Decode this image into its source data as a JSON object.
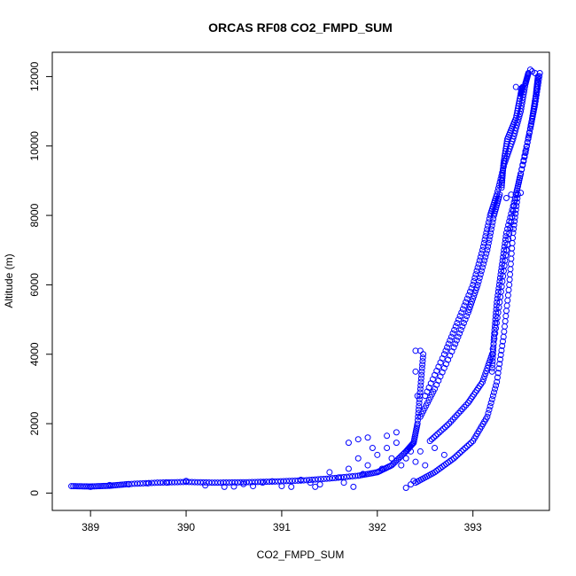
{
  "chart_data": {
    "type": "scatter",
    "title": "ORCAS RF08 CO2_FMPD_SUM",
    "xlabel": "CO2_FMPD_SUM",
    "ylabel": "Altitude (m)",
    "xlim": [
      388.6,
      393.8
    ],
    "ylim": [
      -500,
      12700
    ],
    "xticks": [
      389,
      390,
      391,
      392,
      393
    ],
    "yticks": [
      0,
      2000,
      4000,
      6000,
      8000,
      10000,
      12000
    ],
    "xtick_labels": [
      "389",
      "390",
      "391",
      "392",
      "393"
    ],
    "ytick_labels": [
      "0",
      "2000",
      "4000",
      "6000",
      "8000",
      "10000",
      "12000"
    ],
    "grid": false,
    "legend": "none",
    "marker": "open-circle",
    "color": "#0000ff",
    "series": [
      {
        "segments": [
          [
            [
              388.8,
              200
            ],
            [
              389.0,
              190
            ],
            [
              389.2,
              210
            ],
            [
              389.4,
              260
            ],
            [
              389.7,
              300
            ],
            [
              390.0,
              320
            ],
            [
              390.3,
              300
            ],
            [
              390.6,
              310
            ],
            [
              390.9,
              330
            ],
            [
              391.2,
              360
            ],
            [
              391.5,
              420
            ],
            [
              391.8,
              500
            ],
            [
              392.0,
              600
            ],
            [
              392.15,
              800
            ],
            [
              392.3,
              1200
            ],
            [
              392.38,
              1450
            ],
            [
              392.42,
              2000
            ],
            [
              392.45,
              3000
            ],
            [
              392.48,
              4000
            ]
          ],
          [
            [
              392.4,
              300
            ],
            [
              392.6,
              600
            ],
            [
              392.8,
              1000
            ],
            [
              393.0,
              1500
            ],
            [
              393.15,
              2200
            ],
            [
              393.25,
              3200
            ],
            [
              393.32,
              4500
            ],
            [
              393.38,
              6000
            ],
            [
              393.42,
              7500
            ],
            [
              393.47,
              8600
            ]
          ],
          [
            [
              392.45,
              2200
            ],
            [
              392.6,
              3000
            ],
            [
              392.8,
              4200
            ],
            [
              392.95,
              5200
            ],
            [
              393.05,
              6000
            ],
            [
              393.15,
              7000
            ],
            [
              393.22,
              8000
            ],
            [
              393.28,
              8600
            ]
          ],
          [
            [
              392.5,
              2800
            ],
            [
              392.7,
              4000
            ],
            [
              392.85,
              5000
            ],
            [
              393.0,
              6000
            ],
            [
              393.1,
              7000
            ],
            [
              393.18,
              8000
            ],
            [
              393.25,
              8600
            ],
            [
              393.33,
              9500
            ],
            [
              393.42,
              10200
            ],
            [
              393.5,
              11000
            ],
            [
              393.55,
              11800
            ],
            [
              393.58,
              12100
            ]
          ],
          [
            [
              392.55,
              1500
            ],
            [
              392.75,
              2000
            ],
            [
              392.95,
              2600
            ],
            [
              393.1,
              3200
            ],
            [
              393.2,
              4000
            ],
            [
              393.28,
              5500
            ],
            [
              393.35,
              7000
            ],
            [
              393.45,
              8600
            ],
            [
              393.55,
              9800
            ],
            [
              393.62,
              10800
            ],
            [
              393.66,
              11500
            ],
            [
              393.68,
              12000
            ]
          ],
          [
            [
              393.2,
              3500
            ],
            [
              393.22,
              4500
            ],
            [
              393.25,
              5500
            ],
            [
              393.3,
              6500
            ],
            [
              393.35,
              7500
            ],
            [
              393.45,
              8600
            ],
            [
              393.5,
              9200
            ],
            [
              393.6,
              10500
            ],
            [
              393.65,
              11200
            ],
            [
              393.7,
              12100
            ]
          ],
          [
            [
              393.3,
              8800
            ],
            [
              393.32,
              9500
            ],
            [
              393.36,
              10200
            ],
            [
              393.45,
              10800
            ],
            [
              393.5,
              11500
            ],
            [
              393.52,
              11700
            ]
          ]
        ],
        "scatter": [
          [
            389.0,
            180
          ],
          [
            389.2,
            230
          ],
          [
            389.4,
            250
          ],
          [
            389.6,
            280
          ],
          [
            389.8,
            300
          ],
          [
            390.0,
            350
          ],
          [
            390.2,
            220
          ],
          [
            390.4,
            180
          ],
          [
            390.5,
            190
          ],
          [
            390.6,
            260
          ],
          [
            390.7,
            200
          ],
          [
            390.8,
            300
          ],
          [
            390.9,
            340
          ],
          [
            391.0,
            200
          ],
          [
            391.1,
            180
          ],
          [
            391.2,
            380
          ],
          [
            391.3,
            300
          ],
          [
            391.35,
            180
          ],
          [
            391.4,
            250
          ],
          [
            391.5,
            600
          ],
          [
            391.6,
            450
          ],
          [
            391.65,
            300
          ],
          [
            391.7,
            700
          ],
          [
            391.75,
            180
          ],
          [
            391.8,
            1000
          ],
          [
            391.85,
            550
          ],
          [
            391.9,
            800
          ],
          [
            391.95,
            1300
          ],
          [
            392.0,
            1100
          ],
          [
            392.05,
            700
          ],
          [
            392.1,
            1300
          ],
          [
            392.15,
            1000
          ],
          [
            392.2,
            1450
          ],
          [
            392.25,
            800
          ],
          [
            392.3,
            1000
          ],
          [
            392.35,
            1200
          ],
          [
            392.4,
            900
          ],
          [
            392.45,
            1200
          ],
          [
            392.5,
            800
          ],
          [
            392.6,
            1300
          ],
          [
            392.7,
            1100
          ],
          [
            391.7,
            1450
          ],
          [
            391.8,
            1550
          ],
          [
            391.9,
            1600
          ],
          [
            392.1,
            1650
          ],
          [
            392.2,
            1750
          ],
          [
            392.3,
            150
          ],
          [
            392.35,
            250
          ],
          [
            392.38,
            350
          ],
          [
            392.4,
            4100
          ],
          [
            392.45,
            4100
          ],
          [
            392.4,
            3500
          ],
          [
            392.42,
            2800
          ],
          [
            393.35,
            8500
          ],
          [
            393.4,
            8600
          ],
          [
            393.45,
            8600
          ],
          [
            393.5,
            8650
          ],
          [
            393.3,
            9000
          ],
          [
            393.45,
            11700
          ],
          [
            393.5,
            11650
          ],
          [
            393.55,
            11800
          ],
          [
            393.6,
            12200
          ],
          [
            393.62,
            12150
          ],
          [
            393.65,
            12100
          ]
        ]
      }
    ]
  }
}
